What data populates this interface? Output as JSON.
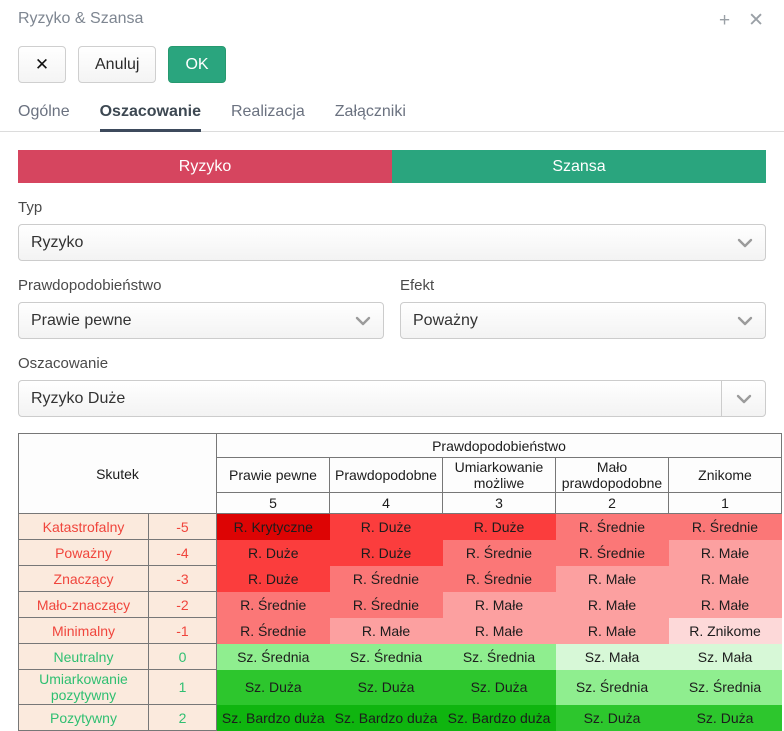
{
  "window": {
    "title": "Ryzyko & Szansa",
    "plus_icon": "+",
    "close_icon": "✕"
  },
  "toolbar": {
    "close_label": "✕",
    "cancel_label": "Anuluj",
    "ok_label": "OK"
  },
  "tabs": [
    {
      "label": "Ogólne",
      "active": false
    },
    {
      "label": "Oszacowanie",
      "active": true
    },
    {
      "label": "Realizacja",
      "active": false
    },
    {
      "label": "Załączniki",
      "active": false
    }
  ],
  "segmented": {
    "risk_label": "Ryzyko",
    "chance_label": "Szansa",
    "risk_color": "#d6455f",
    "chance_color": "#2aa57e"
  },
  "form": {
    "typ": {
      "label": "Typ",
      "value": "Ryzyko"
    },
    "prawdopodobienstwo": {
      "label": "Prawdopodobieństwo",
      "value": "Prawie pewne"
    },
    "efekt": {
      "label": "Efekt",
      "value": "Poważny"
    },
    "oszacowanie": {
      "label": "Oszacowanie",
      "value": "Ryzyko Duże"
    }
  },
  "matrix": {
    "corner_label": "Skutek",
    "group_header": "Prawdopodobieństwo",
    "columns": [
      "Prawie pewne",
      "Prawdopodobne",
      "Umiarkowanie możliwe",
      "Mało prawdopodobne",
      "Znikome"
    ],
    "column_values": [
      "5",
      "4",
      "3",
      "2",
      "1"
    ],
    "rows": [
      {
        "label": "Katastrofalny",
        "value": "-5",
        "type": "negative",
        "cells": [
          "R. Krytyczne",
          "R. Duże",
          "R. Duże",
          "R. Średnie",
          "R. Średnie"
        ]
      },
      {
        "label": "Poważny",
        "value": "-4",
        "type": "negative",
        "cells": [
          "R. Duże",
          "R. Duże",
          "R. Średnie",
          "R. Średnie",
          "R. Małe"
        ]
      },
      {
        "label": "Znaczący",
        "value": "-3",
        "type": "negative",
        "cells": [
          "R. Duże",
          "R. Średnie",
          "R. Średnie",
          "R. Małe",
          "R. Małe"
        ]
      },
      {
        "label": "Mało-znaczący",
        "value": "-2",
        "type": "negative",
        "cells": [
          "R. Średnie",
          "R. Średnie",
          "R. Małe",
          "R. Małe",
          "R. Małe"
        ]
      },
      {
        "label": "Minimalny",
        "value": "-1",
        "type": "negative",
        "cells": [
          "R. Średnie",
          "R. Małe",
          "R. Małe",
          "R. Małe",
          "R. Znikome"
        ]
      },
      {
        "label": "Neutralny",
        "value": "0",
        "type": "positive",
        "cells": [
          "Sz. Średnia",
          "Sz. Średnia",
          "Sz. Średnia",
          "Sz. Mała",
          "Sz. Mała"
        ]
      },
      {
        "label": "Umiarkowanie pozytywny",
        "value": "1",
        "type": "positive",
        "cells": [
          "Sz. Duża",
          "Sz. Duża",
          "Sz. Duża",
          "Sz. Średnia",
          "Sz. Średnia"
        ]
      },
      {
        "label": "Pozytywny",
        "value": "2",
        "type": "positive",
        "cells": [
          "Sz. Bardzo duża",
          "Sz. Bardzo duża",
          "Sz. Bardzo duża",
          "Sz. Duża",
          "Sz. Duża"
        ]
      }
    ],
    "cell_colors": {
      "R. Krytyczne": "#dd0404",
      "R. Duże": "#fb3d3d",
      "R. Średnie": "#fb7777",
      "R. Małe": "#fca0a0",
      "R. Znikome": "#fdd9d9",
      "Sz. Mała": "#d7f8d7",
      "Sz. Średnia": "#8fee8f",
      "Sz. Duża": "#2dc62d",
      "Sz. Bardzo duża": "#0fb50f"
    },
    "label_colors": {
      "negative": "#f0453c",
      "positive": "#2fbf71"
    }
  }
}
